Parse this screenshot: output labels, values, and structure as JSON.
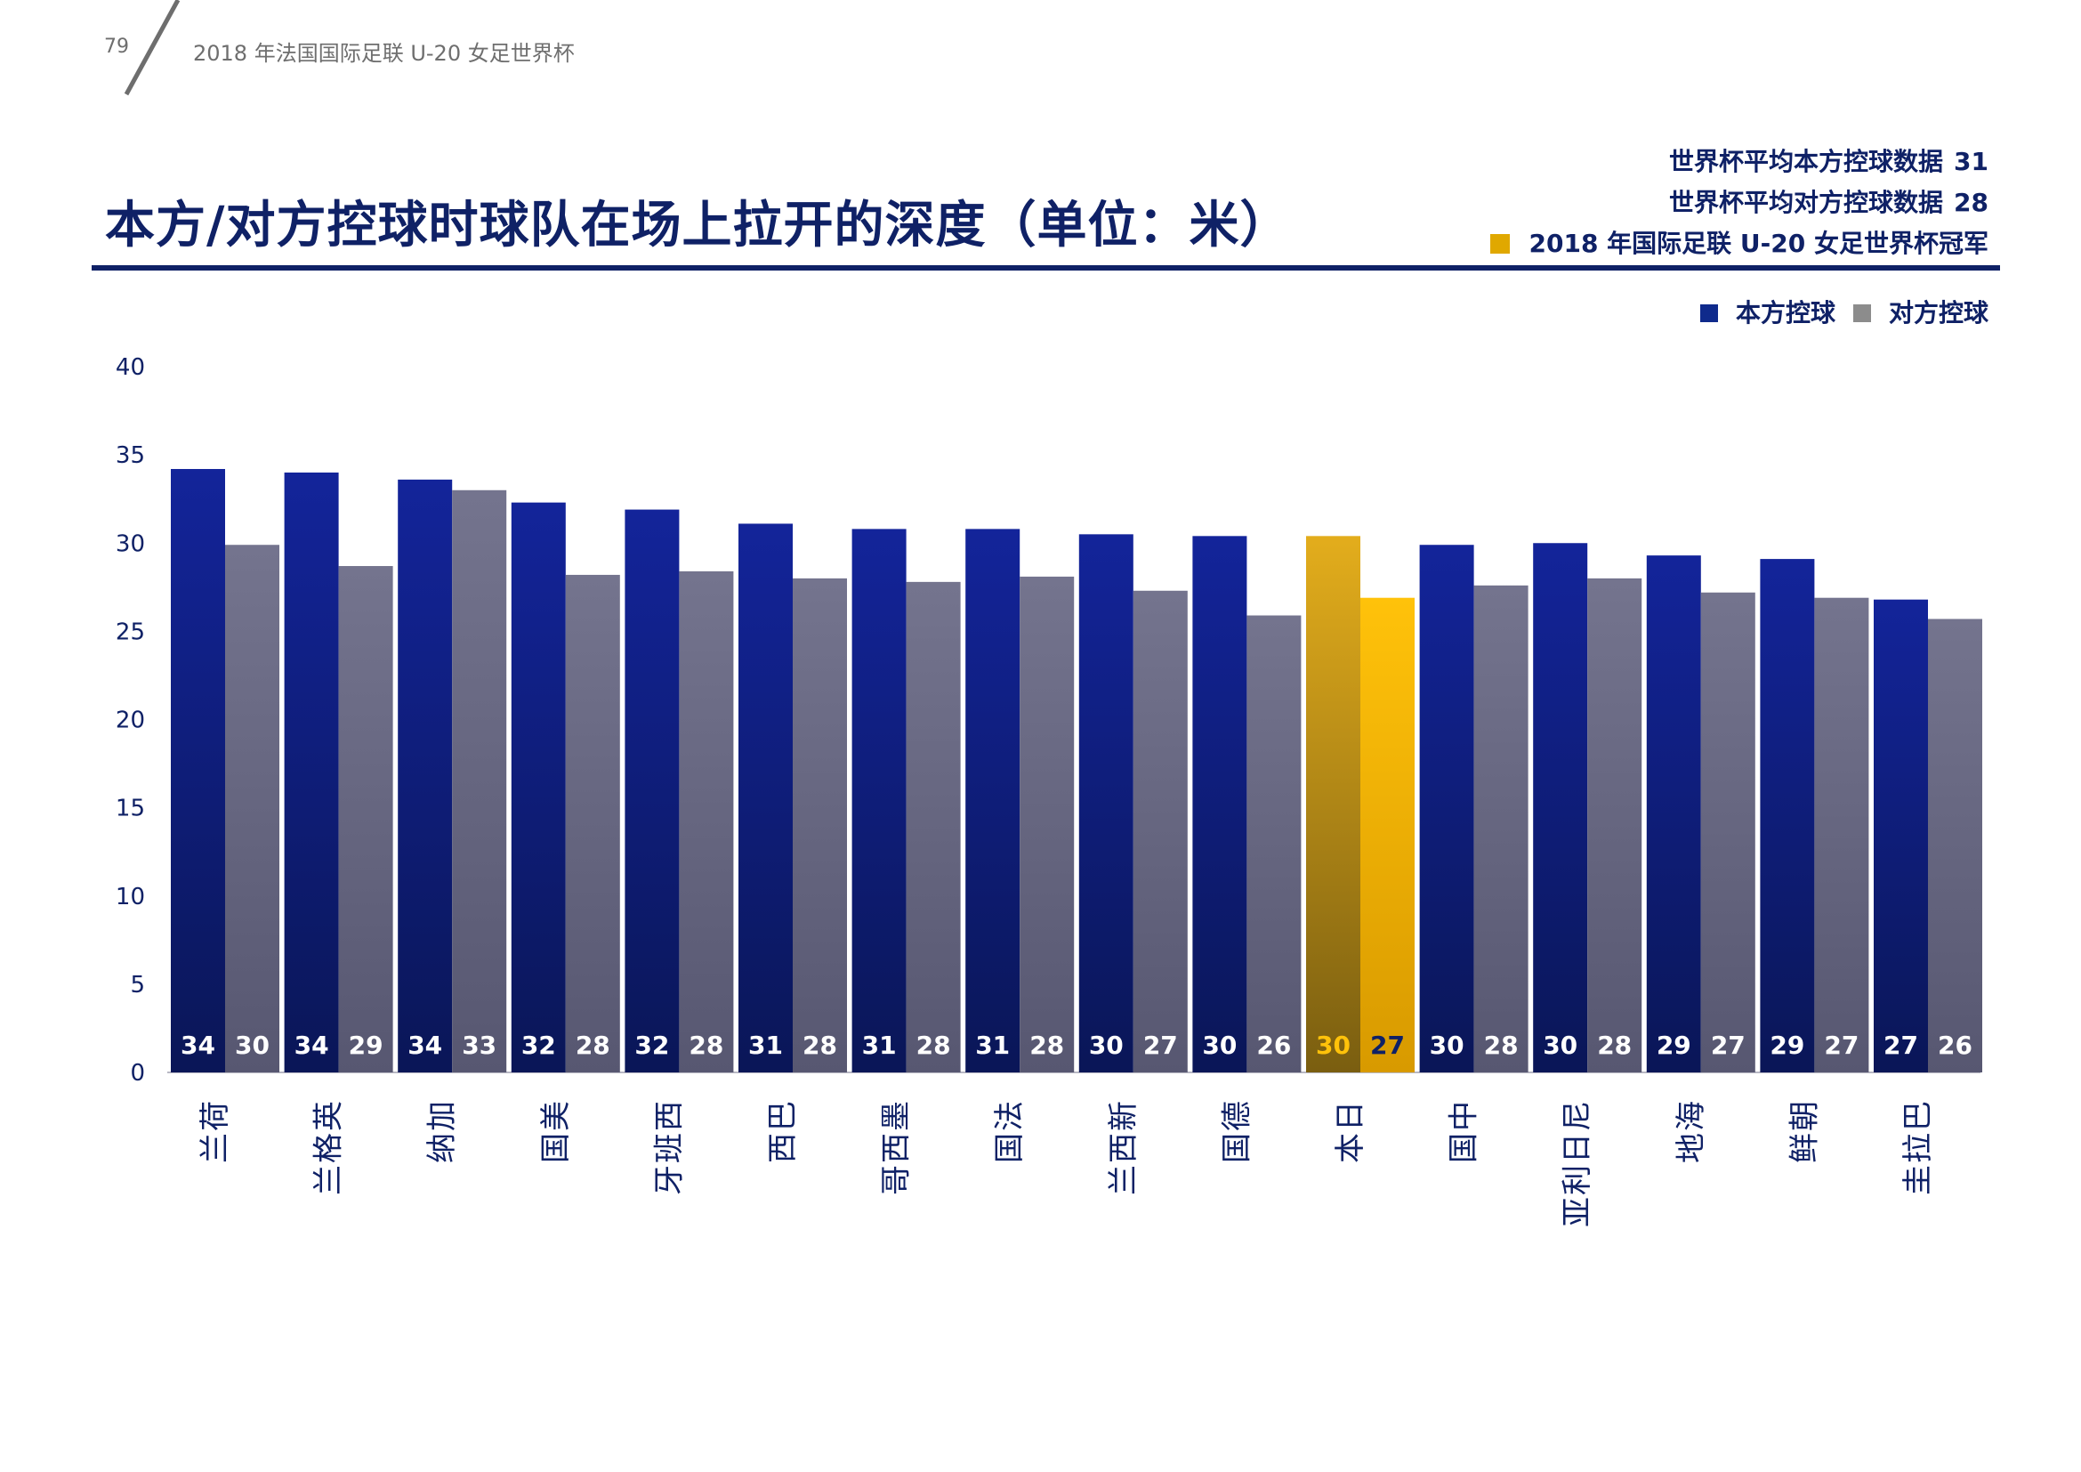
{
  "header": {
    "page_number": "79",
    "doc_title": "2018 年法国国际足联 U-20 女足世界杯"
  },
  "title": "本方/对方控球时球队在场上拉开的深度（单位：米）",
  "stats": {
    "home_avg_label": "世界杯平均本方控球数据",
    "home_avg_value": "31",
    "opp_avg_label": "世界杯平均对方控球数据",
    "opp_avg_value": "28",
    "champion_label": "2018 年国际足联 U-20 女足世界杯冠军"
  },
  "legend": {
    "home": "本方控球",
    "opp": "对方控球"
  },
  "colors": {
    "brand_navy": "#0f2166",
    "home_bar": "#0f2a8c",
    "opp_bar": "#74748e",
    "champion_home": "#d9a400",
    "champion_opp": "#ffbe00"
  },
  "chart_data": {
    "type": "bar",
    "categories": [
      "荷兰",
      "英格兰",
      "加纳",
      "美国",
      "西班牙",
      "巴西",
      "墨西哥",
      "法国",
      "新西兰",
      "德国",
      "日本",
      "中国",
      "尼日利亚",
      "海地",
      "朝鲜",
      "巴拉圭"
    ],
    "series": [
      {
        "name": "本方控球",
        "values": [
          34.2,
          34.0,
          33.6,
          32.3,
          31.9,
          31.1,
          30.8,
          30.8,
          30.5,
          30.4,
          30.4,
          29.9,
          30.0,
          29.3,
          29.1,
          26.8
        ],
        "labels": [
          "34",
          "34",
          "34",
          "32",
          "32",
          "31",
          "31",
          "31",
          "30",
          "30",
          "30",
          "30",
          "30",
          "29",
          "29",
          "27"
        ]
      },
      {
        "name": "对方控球",
        "values": [
          29.9,
          28.7,
          33.0,
          28.2,
          28.4,
          28.0,
          27.8,
          28.1,
          27.3,
          25.9,
          26.9,
          27.6,
          28.0,
          27.2,
          26.9,
          25.7
        ],
        "labels": [
          "30",
          "29",
          "33",
          "28",
          "28",
          "28",
          "28",
          "28",
          "27",
          "26",
          "27",
          "28",
          "28",
          "27",
          "27",
          "26"
        ]
      }
    ],
    "highlight": "日本",
    "ylim": [
      0,
      40
    ],
    "yticks": [
      0,
      5,
      10,
      15,
      20,
      25,
      30,
      35,
      40
    ],
    "grid": false,
    "legend_position": "top-right"
  }
}
